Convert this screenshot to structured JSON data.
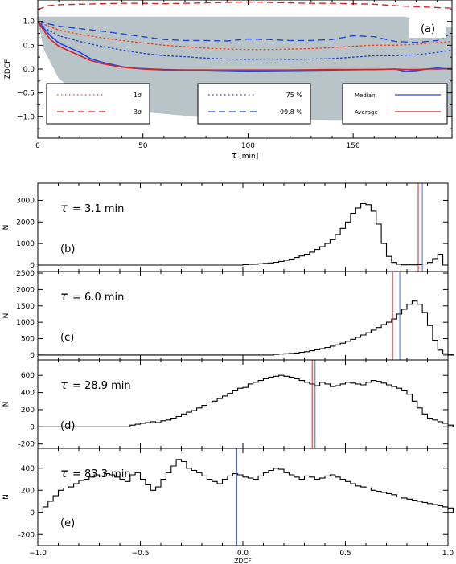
{
  "chart_data": [
    {
      "panel": "a",
      "type": "line",
      "label": "(a)",
      "xlabel_sym": "τ",
      "xlabel_unit": " [min]",
      "ylabel": "ZDCF",
      "xlim": [
        0,
        197
      ],
      "ylim": [
        -1.45,
        1.45
      ],
      "xticks": [
        0,
        50,
        100,
        150
      ],
      "yticks": [
        -1.0,
        -0.5,
        0.0,
        0.5,
        1.0
      ],
      "ytick_labels": [
        "−1.0",
        "−0.5",
        "0.0",
        "0.5",
        "1.0"
      ],
      "envelope": {
        "color": "#b8c4c8",
        "x": [
          0,
          3,
          10,
          20,
          30,
          50,
          75,
          100,
          150,
          175,
          185,
          190,
          197
        ],
        "upper": [
          1.1,
          1.1,
          1.1,
          1.1,
          1.1,
          1.1,
          1.1,
          1.1,
          1.1,
          1.1,
          0.95,
          0.9,
          0.88
        ],
        "lower": [
          1.0,
          0.4,
          -0.2,
          -0.55,
          -0.72,
          -0.9,
          -1.0,
          -1.05,
          -1.07,
          -1.05,
          -1.02,
          -1.0,
          -0.98
        ]
      },
      "series": [
        {
          "name": "3σ",
          "style": "dashed",
          "color": "#dd2222",
          "x": [
            0,
            5,
            10,
            20,
            30,
            40,
            50,
            60,
            70,
            80,
            90,
            100,
            110,
            120,
            130,
            140,
            150,
            160,
            170,
            180,
            190,
            197
          ],
          "values": [
            1.25,
            1.33,
            1.35,
            1.36,
            1.37,
            1.38,
            1.38,
            1.37,
            1.38,
            1.39,
            1.4,
            1.41,
            1.4,
            1.39,
            1.38,
            1.38,
            1.37,
            1.36,
            1.33,
            1.31,
            1.29,
            1.28
          ]
        },
        {
          "name": "1σ",
          "style": "dotted",
          "color": "#ee4422",
          "x": [
            0,
            5,
            10,
            20,
            30,
            40,
            50,
            60,
            70,
            80,
            90,
            100,
            110,
            120,
            130,
            140,
            150,
            160,
            170,
            180,
            190,
            197
          ],
          "values": [
            1.0,
            0.9,
            0.82,
            0.73,
            0.66,
            0.6,
            0.55,
            0.5,
            0.47,
            0.44,
            0.42,
            0.41,
            0.41,
            0.42,
            0.43,
            0.45,
            0.48,
            0.5,
            0.5,
            0.52,
            0.56,
            0.58
          ]
        },
        {
          "name": "99.8 %",
          "style": "dashed",
          "color": "#2244dd",
          "x": [
            0,
            5,
            10,
            20,
            30,
            40,
            50,
            60,
            70,
            80,
            90,
            100,
            110,
            120,
            130,
            140,
            150,
            160,
            170,
            180,
            190,
            197
          ],
          "values": [
            1.0,
            0.95,
            0.9,
            0.85,
            0.8,
            0.74,
            0.68,
            0.62,
            0.6,
            0.6,
            0.59,
            0.63,
            0.62,
            0.6,
            0.6,
            0.62,
            0.7,
            0.68,
            0.58,
            0.56,
            0.6,
            0.75
          ]
        },
        {
          "name": "75 %",
          "style": "dotted",
          "color": "#2244dd",
          "x": [
            0,
            5,
            10,
            20,
            30,
            40,
            50,
            60,
            70,
            80,
            90,
            100,
            110,
            120,
            130,
            140,
            150,
            160,
            170,
            180,
            190,
            197
          ],
          "values": [
            1.0,
            0.82,
            0.7,
            0.58,
            0.48,
            0.4,
            0.33,
            0.28,
            0.26,
            0.23,
            0.21,
            0.2,
            0.21,
            0.2,
            0.21,
            0.22,
            0.25,
            0.28,
            0.28,
            0.3,
            0.35,
            0.4
          ]
        },
        {
          "name": "Median",
          "style": "solid",
          "color": "#2244ee",
          "x": [
            0,
            3,
            6,
            10,
            15,
            20,
            25,
            30,
            35,
            40,
            45,
            50,
            55,
            60,
            70,
            80,
            100,
            120,
            140,
            160,
            170,
            175,
            180,
            185,
            190,
            197
          ],
          "values": [
            1.0,
            0.85,
            0.7,
            0.55,
            0.45,
            0.35,
            0.22,
            0.15,
            0.1,
            0.05,
            0.02,
            0.01,
            0.0,
            -0.01,
            -0.02,
            -0.02,
            -0.04,
            -0.03,
            -0.02,
            -0.01,
            0.0,
            -0.05,
            -0.03,
            0.0,
            0.02,
            0.0
          ]
        },
        {
          "name": "Average",
          "style": "solid",
          "color": "#dd2222",
          "x": [
            0,
            3,
            6,
            10,
            15,
            20,
            25,
            30,
            35,
            40,
            45,
            50,
            55,
            60,
            70,
            80,
            100,
            120,
            140,
            160,
            170,
            175,
            180,
            185,
            190,
            197
          ],
          "values": [
            1.0,
            0.8,
            0.62,
            0.48,
            0.38,
            0.28,
            0.18,
            0.12,
            0.08,
            0.04,
            0.02,
            0.0,
            -0.01,
            -0.02,
            -0.02,
            -0.02,
            -0.02,
            -0.02,
            -0.01,
            -0.01,
            0.0,
            -0.01,
            -0.01,
            0.0,
            0.0,
            0.01
          ]
        }
      ],
      "legend_boxes": [
        {
          "entries": [
            {
              "label": "1σ",
              "series": "1σ"
            },
            {
              "label": "3σ",
              "series": "3σ"
            }
          ]
        },
        {
          "entries": [
            {
              "label": "75 %",
              "series": "75 %"
            },
            {
              "label": "99.8 %",
              "series": "99.8 %"
            }
          ]
        },
        {
          "entries": [
            {
              "label": "Median",
              "series": "Median"
            },
            {
              "label": "Average",
              "series": "Average"
            }
          ]
        }
      ]
    },
    {
      "panel": "b",
      "type": "histogram",
      "label": "(b)",
      "tau_label": "τ",
      "tau_value": "= 3.1 min",
      "ylabel": "N",
      "xlim": [
        -1.0,
        1.0
      ],
      "ylim": [
        -300,
        3800
      ],
      "yticks": [
        0,
        1000,
        2000,
        3000
      ],
      "bin_start": 0.0,
      "bin_width": 0.025,
      "counts": [
        20,
        30,
        40,
        60,
        80,
        100,
        130,
        170,
        220,
        280,
        350,
        420,
        500,
        600,
        720,
        850,
        1000,
        1180,
        1420,
        1700,
        2000,
        2400,
        2650,
        2850,
        2800,
        2500,
        1900,
        1000,
        400,
        120,
        40,
        10,
        10,
        10,
        20,
        50,
        120,
        300,
        500,
        0
      ],
      "median": 0.875,
      "average": 0.855,
      "median_color": "#4466ee",
      "average_color": "#dd2222"
    },
    {
      "panel": "c",
      "type": "histogram",
      "label": "(c)",
      "tau_label": "τ",
      "tau_value": "= 6.0 min",
      "ylabel": "N",
      "xlim": [
        -1.0,
        1.0
      ],
      "ylim": [
        -150,
        2550
      ],
      "yticks": [
        0,
        500,
        1000,
        1500,
        2000,
        2500
      ],
      "bin_start": 0.15,
      "bin_width": 0.025,
      "counts": [
        20,
        30,
        40,
        50,
        60,
        80,
        100,
        130,
        160,
        190,
        230,
        270,
        310,
        360,
        420,
        480,
        540,
        610,
        680,
        760,
        840,
        930,
        1000,
        1100,
        1250,
        1400,
        1550,
        1650,
        1550,
        1300,
        900,
        450,
        150,
        40,
        10
      ],
      "median": 0.765,
      "average": 0.73,
      "median_color": "#4466ee",
      "average_color": "#dd2222"
    },
    {
      "panel": "d",
      "type": "histogram",
      "label": "(d)",
      "tau_label": "τ",
      "tau_value": "= 28.9 min",
      "ylabel": "N",
      "xlim": [
        -1.0,
        1.0
      ],
      "ylim": [
        -250,
        780
      ],
      "yticks": [
        -200,
        0,
        200,
        400,
        600
      ],
      "bin_start": -0.55,
      "bin_width": 0.025,
      "counts": [
        20,
        30,
        40,
        50,
        60,
        50,
        70,
        80,
        100,
        120,
        150,
        170,
        190,
        220,
        250,
        280,
        300,
        330,
        360,
        390,
        420,
        450,
        460,
        500,
        520,
        540,
        560,
        580,
        590,
        600,
        590,
        580,
        560,
        540,
        520,
        500,
        480,
        520,
        500,
        470,
        480,
        500,
        520,
        510,
        500,
        490,
        520,
        540,
        530,
        510,
        490,
        470,
        450,
        420,
        380,
        300,
        220,
        150,
        100,
        80,
        60,
        40,
        20
      ],
      "median": 0.352,
      "average": 0.338,
      "median_color": "#4466ee",
      "average_color": "#dd2222"
    },
    {
      "panel": "e",
      "type": "histogram",
      "label": "(e)",
      "tau_label": "τ",
      "tau_value": "= 83.3 min",
      "ylabel": "N",
      "xlim": [
        -1.0,
        1.0
      ],
      "ylim": [
        -300,
        580
      ],
      "yticks": [
        -200,
        0,
        200,
        400
      ],
      "bin_start": -0.975,
      "bin_width": 0.025,
      "counts": [
        50,
        100,
        150,
        200,
        220,
        230,
        260,
        290,
        300,
        320,
        340,
        330,
        350,
        340,
        320,
        300,
        280,
        340,
        360,
        300,
        250,
        200,
        230,
        300,
        360,
        420,
        480,
        460,
        400,
        380,
        360,
        330,
        300,
        280,
        260,
        300,
        330,
        350,
        340,
        320,
        310,
        300,
        330,
        360,
        380,
        400,
        390,
        360,
        340,
        320,
        300,
        330,
        320,
        300,
        310,
        330,
        340,
        320,
        300,
        280,
        260,
        240,
        230,
        220,
        200,
        190,
        180,
        170,
        160,
        140,
        130,
        120,
        110,
        100,
        90,
        80,
        70,
        60,
        50,
        40
      ],
      "median": -0.03,
      "average": -0.03,
      "median_color": "#4466ee",
      "average_color": "#dd2222"
    }
  ],
  "bottom_axis": {
    "xticks": [
      -1.0,
      -0.5,
      0.0,
      0.5,
      1.0
    ],
    "xtick_labels": [
      "−1.0",
      "−0.5",
      "0.0",
      "0.5",
      "1.0"
    ],
    "xlabel": "ZDCF"
  }
}
